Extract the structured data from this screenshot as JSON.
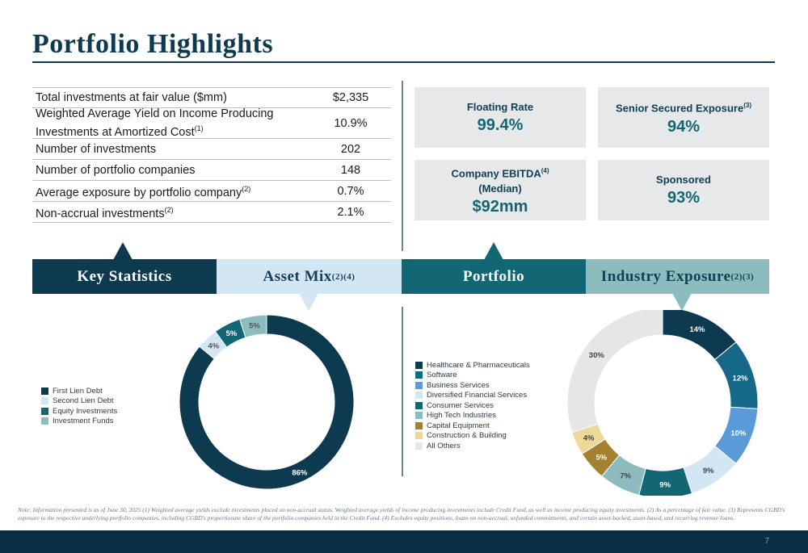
{
  "title": "Portfolio Highlights",
  "stats": [
    {
      "label": "Total investments at fair value ($mm)",
      "sup": "",
      "value": "$2,335"
    },
    {
      "label": "Weighted Average Yield on Income Producing Investments at Amortized Cost",
      "sup": "(1)",
      "value": "10.9%"
    },
    {
      "label": "Number of investments",
      "sup": "",
      "value": "202"
    },
    {
      "label": "Number of portfolio companies",
      "sup": "",
      "value": "148"
    },
    {
      "label": "Average exposure by portfolio company",
      "sup": "(2)",
      "value": "0.7%"
    },
    {
      "label": "Non-accrual investments",
      "sup": "(2)",
      "value": "2.1%"
    }
  ],
  "kpis": {
    "floating_rate": {
      "label": "Floating Rate",
      "value": "99.4%"
    },
    "senior_secured": {
      "label": "Senior Secured Exposure",
      "sup": "(3)",
      "value": "94%"
    },
    "company_ebitda": {
      "label": "Company EBITDA",
      "sup": "(4)",
      "label2": "(Median)",
      "value": "$92mm"
    },
    "sponsored": {
      "label": "Sponsored",
      "value": "93%"
    }
  },
  "banner": {
    "key_statistics": "Key Statistics",
    "asset_mix": "Asset Mix",
    "asset_mix_sup": "(2)(4)",
    "portfolio": "Portfolio",
    "industry_exposure": "Industry Exposure",
    "industry_exposure_sup": "(2)(3)"
  },
  "colors": {
    "navy": "#0e3a4f",
    "teal": "#136673",
    "light_blue": "#d3e6f4",
    "light_teal": "#8dbcbf"
  },
  "chart_data": [
    {
      "type": "pie",
      "name": "Asset Mix",
      "categories": [
        "First Lien Debt",
        "Second Lien Debt",
        "Equity Investments",
        "Investment Funds"
      ],
      "values": [
        86,
        4,
        5,
        5
      ],
      "labels": [
        "86%",
        "4%",
        "5%",
        "5%"
      ],
      "colors": [
        "#0e3a4f",
        "#d3e6f4",
        "#136673",
        "#8dbcbf"
      ],
      "label_colors": [
        "#ffffff",
        "#555555",
        "#ffffff",
        "#555555"
      ],
      "legend": "left"
    },
    {
      "type": "pie",
      "name": "Industry Exposure",
      "categories": [
        "Healthcare & Pharmaceuticals",
        "Software",
        "Business Services",
        "Diversified Financial Services",
        "Consumer Services",
        "High Tech Industries",
        "Capital Equipment",
        "Construction & Building",
        "All Others"
      ],
      "values": [
        14,
        12,
        10,
        9,
        9,
        7,
        5,
        4,
        30
      ],
      "labels": [
        "14%",
        "12%",
        "10%",
        "9%",
        "9%",
        "7%",
        "5%",
        "4%",
        "30%"
      ],
      "colors": [
        "#0e3a4f",
        "#156888",
        "#5b9ad8",
        "#d3e6f4",
        "#136673",
        "#8dbcbf",
        "#a4812f",
        "#ecd89a",
        "#e6e6e6"
      ],
      "label_colors": [
        "#ffffff",
        "#ffffff",
        "#ffffff",
        "#444444",
        "#ffffff",
        "#444444",
        "#ffffff",
        "#444444",
        "#444444"
      ],
      "legend": "left"
    }
  ],
  "note": "Note: Information presented is as of June 30, 2025 (1) Weighted average yields exclude investments placed on non-accrual status. Weighted average yields of income producing investments include Credit Fund, as well as income producing equity investments. (2) As a percentage of fair value. (3) Represents CGBD's exposure to the respective underlying portfolio companies, including CGBD's proportionate share of the portfolio companies held in the Credit Fund. (4) Excludes equity positions, loans on non-accrual, unfunded commitments, and certain asset-backed, asset-based, and recurring revenue loans.",
  "page_number": "7"
}
